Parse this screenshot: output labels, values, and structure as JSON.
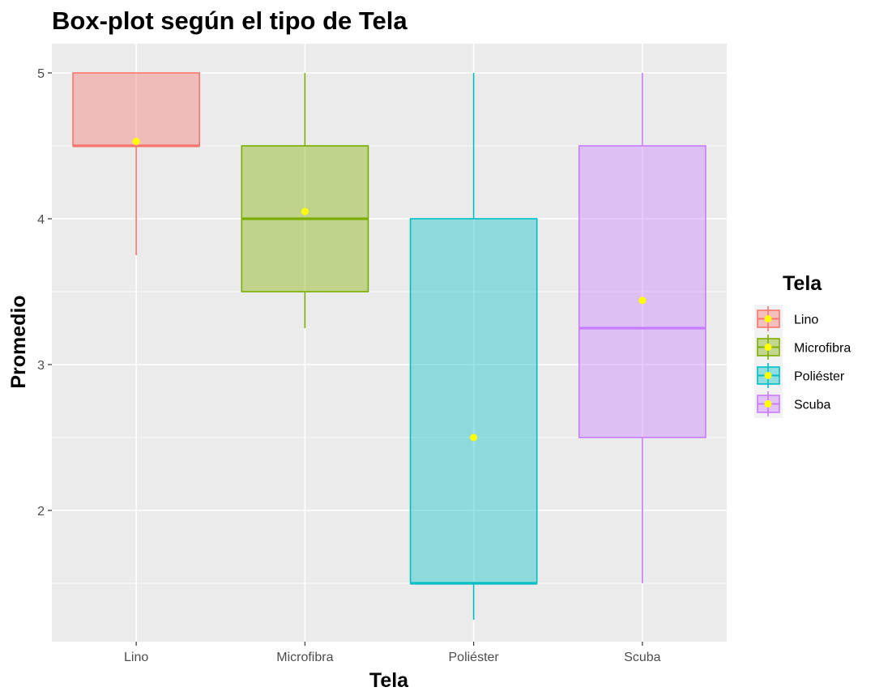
{
  "chart_data": {
    "type": "boxplot",
    "title": "Box-plot según el tipo de Tela",
    "xlabel": "Tela",
    "ylabel": "Promedio",
    "categories": [
      "Lino",
      "Microfibra",
      "Poliéster",
      "Scuba"
    ],
    "ylim": [
      1.1,
      5.2
    ],
    "yticks": [
      2,
      3,
      4,
      5
    ],
    "grid": true,
    "legend": {
      "title": "Tela",
      "position": "right"
    },
    "mean_marker_color": "#ffff00",
    "series": [
      {
        "name": "Lino",
        "color": "#f8766d",
        "fill": "rgba(248,118,109,0.4)",
        "whisker_low": 3.75,
        "q1": 4.5,
        "median": 4.5,
        "q3": 5.0,
        "whisker_high": 5.0,
        "mean": 4.53
      },
      {
        "name": "Microfibra",
        "color": "#7cae00",
        "fill": "rgba(124,174,0,0.4)",
        "whisker_low": 3.25,
        "q1": 3.5,
        "median": 4.0,
        "q3": 4.5,
        "whisker_high": 5.0,
        "mean": 4.05
      },
      {
        "name": "Poliéster",
        "color": "#00bfc4",
        "fill": "rgba(0,191,196,0.4)",
        "whisker_low": 1.25,
        "q1": 1.5,
        "median": 1.5,
        "q3": 4.0,
        "whisker_high": 5.0,
        "mean": 2.5
      },
      {
        "name": "Scuba",
        "color": "#c77cff",
        "fill": "rgba(199,124,255,0.4)",
        "whisker_low": 1.5,
        "q1": 2.5,
        "median": 3.25,
        "q3": 4.5,
        "whisker_high": 5.0,
        "mean": 3.44
      }
    ]
  }
}
